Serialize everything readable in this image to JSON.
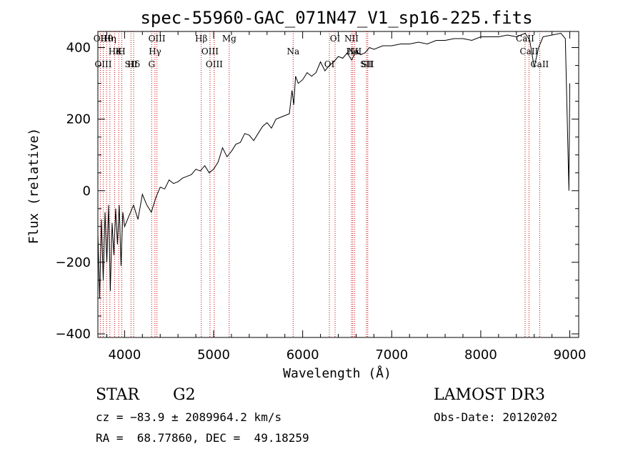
{
  "chart_data": {
    "type": "line",
    "title": "spec-55960-GAC_071N47_V1_sp16-225.fits",
    "xlabel": "Wavelength (Å)",
    "ylabel": "Flux (relative)",
    "xlim": [
      3700,
      9100
    ],
    "ylim": [
      -410,
      445
    ],
    "xticks": [
      4000,
      5000,
      6000,
      7000,
      8000,
      9000
    ],
    "xtick_labels": [
      "4000",
      "5000",
      "6000",
      "7000",
      "8000",
      "9000"
    ],
    "yticks": [
      -400,
      -200,
      0,
      200,
      400
    ],
    "ytick_labels": [
      "−400",
      "−200",
      "0",
      "200",
      "400"
    ],
    "grid": false,
    "series": [
      {
        "name": "flux",
        "color": "#000000",
        "x": [
          3700,
          3720,
          3740,
          3760,
          3780,
          3800,
          3820,
          3840,
          3860,
          3880,
          3900,
          3920,
          3940,
          3960,
          3980,
          4000,
          4050,
          4100,
          4150,
          4200,
          4250,
          4300,
          4350,
          4400,
          4450,
          4500,
          4550,
          4600,
          4650,
          4700,
          4750,
          4800,
          4850,
          4900,
          4950,
          5000,
          5050,
          5100,
          5150,
          5200,
          5250,
          5300,
          5350,
          5400,
          5450,
          5500,
          5550,
          5600,
          5650,
          5700,
          5750,
          5800,
          5850,
          5880,
          5900,
          5920,
          5950,
          6000,
          6050,
          6100,
          6150,
          6200,
          6250,
          6300,
          6350,
          6400,
          6450,
          6500,
          6550,
          6600,
          6650,
          6700,
          6750,
          6800,
          6900,
          7000,
          7100,
          7200,
          7300,
          7400,
          7500,
          7600,
          7700,
          7800,
          7900,
          8000,
          8100,
          8200,
          8300,
          8400,
          8500,
          8550,
          8600,
          8650,
          8700,
          8800,
          8900,
          8950,
          8990,
          9000
        ],
        "y": [
          -120,
          -300,
          -80,
          -250,
          -60,
          -200,
          -40,
          -280,
          -90,
          -180,
          -50,
          -150,
          -40,
          -210,
          -60,
          -100,
          -70,
          -40,
          -80,
          -10,
          -40,
          -60,
          -20,
          10,
          5,
          30,
          20,
          25,
          35,
          40,
          45,
          60,
          55,
          70,
          50,
          60,
          80,
          120,
          95,
          110,
          130,
          135,
          160,
          155,
          140,
          160,
          180,
          190,
          175,
          200,
          205,
          210,
          215,
          280,
          240,
          320,
          300,
          310,
          330,
          320,
          330,
          360,
          335,
          350,
          360,
          375,
          370,
          385,
          365,
          390,
          380,
          385,
          400,
          395,
          405,
          405,
          410,
          410,
          415,
          410,
          420,
          420,
          425,
          425,
          420,
          430,
          430,
          430,
          435,
          430,
          440,
          420,
          345,
          400,
          430,
          435,
          440,
          425,
          0,
          300
        ]
      }
    ],
    "lines": [
      {
        "label": "Hθ",
        "x": 3798
      },
      {
        "label": "K",
        "x": 3934
      },
      {
        "label": "Hδ",
        "x": 4102
      },
      {
        "label": "OII",
        "x": 3727
      },
      {
        "label": "He",
        "x": 3889
      },
      {
        "label": "SII",
        "x": 4072
      },
      {
        "label": "OIII",
        "x": 4363
      },
      {
        "label": "Hγ",
        "x": 4341
      },
      {
        "label": "OIII",
        "x": 3760
      },
      {
        "label": "Hη",
        "x": 3835
      },
      {
        "label": "H",
        "x": 3969
      },
      {
        "label": "G",
        "x": 4304
      },
      {
        "label": "Hβ",
        "x": 4861
      },
      {
        "label": "OIII",
        "x": 4959
      },
      {
        "label": "OIII",
        "x": 5007
      },
      {
        "label": "Mg",
        "x": 5175
      },
      {
        "label": "Na",
        "x": 5893
      },
      {
        "label": "OI",
        "x": 6300
      },
      {
        "label": "OI",
        "x": 6364
      },
      {
        "label": "Hα",
        "x": 6563
      },
      {
        "label": "SII",
        "x": 6716
      },
      {
        "label": "NII",
        "x": 6548
      },
      {
        "label": "NII",
        "x": 6583
      },
      {
        "label": "SII",
        "x": 6731
      },
      {
        "label": "CaII",
        "x": 8498
      },
      {
        "label": "CaII",
        "x": 8542
      },
      {
        "label": "CaII",
        "x": 8662
      }
    ],
    "annotations": {
      "object_type": "STAR",
      "subclass": "G2",
      "survey": "LAMOST DR3",
      "cz_line": "cz = −83.9 ± 2089964.2 km/s",
      "obs_date": "Obs-Date: 20120202",
      "coords": "RA =  68.77860, DEC =  49.18259"
    }
  }
}
